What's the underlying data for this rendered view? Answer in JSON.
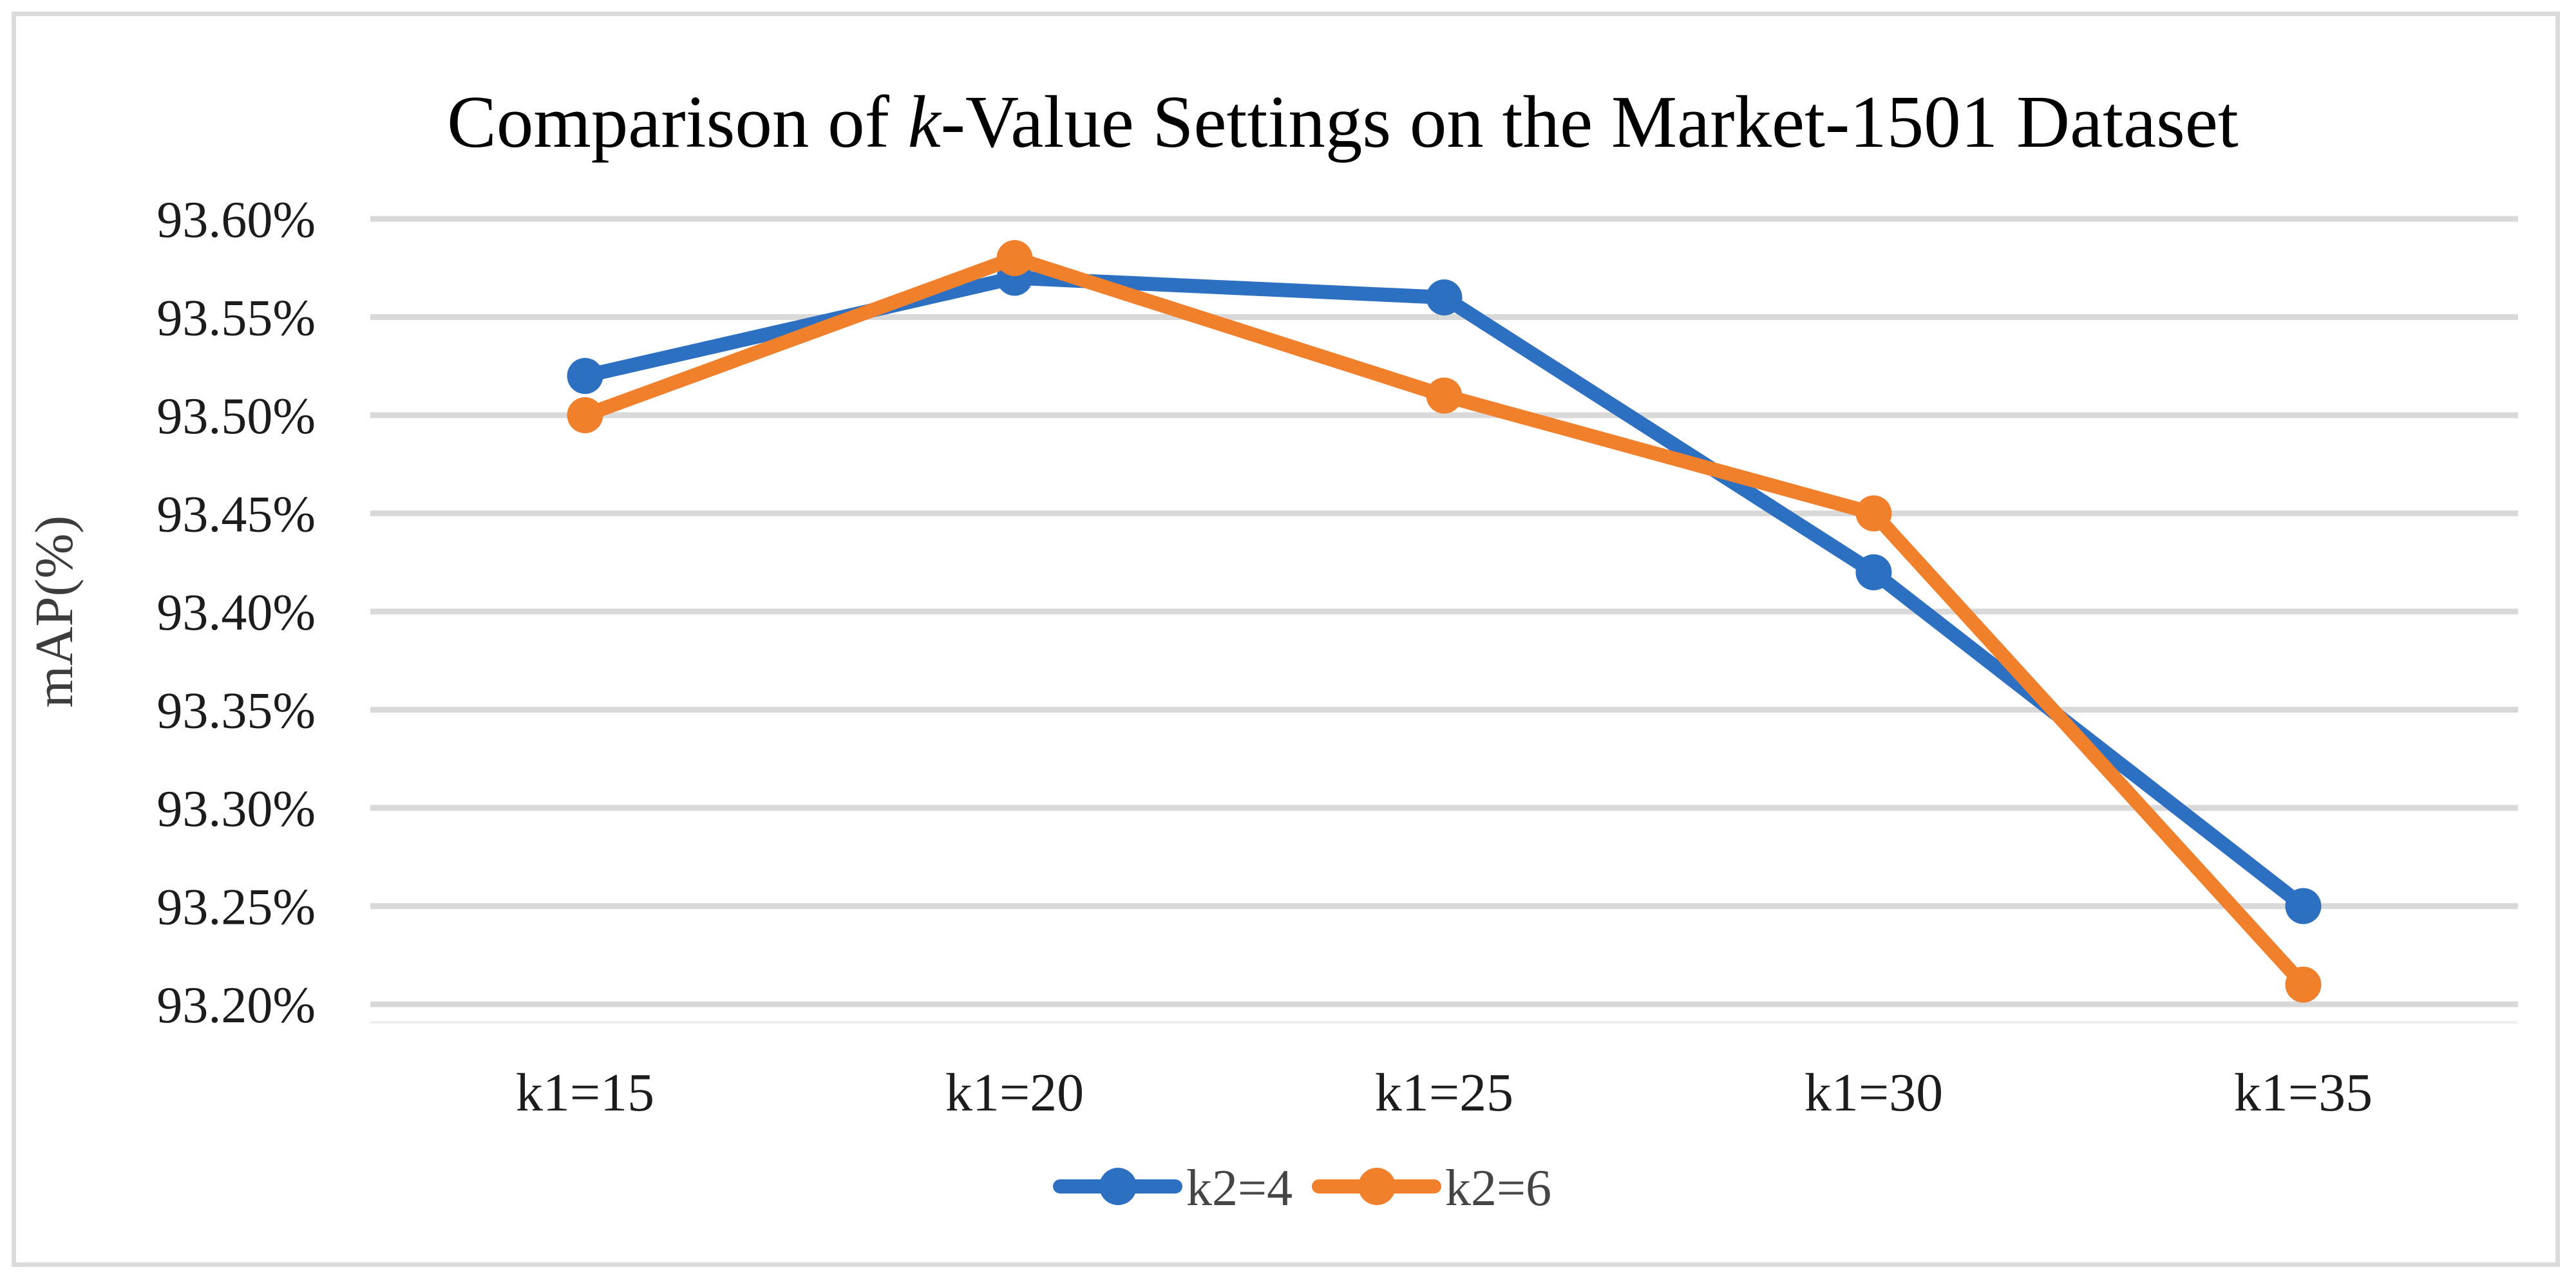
{
  "figure": {
    "title": {
      "prefix": "Comparison of ",
      "italic_var": "k",
      "suffix": "-Value Settings on the Market-1501 Dataset"
    },
    "y_axis_title": "mAP(%)"
  },
  "chart_data": {
    "type": "line",
    "title": "Comparison of k-Value Settings on the Market-1501 Dataset",
    "xlabel": "",
    "ylabel": "mAP(%)",
    "categories": [
      "k1=15",
      "k1=20",
      "k1=25",
      "k1=30",
      "k1=35"
    ],
    "series": [
      {
        "name": "k2=4",
        "color": "#2d70c2",
        "values": [
          93.52,
          93.57,
          93.56,
          93.42,
          93.25
        ]
      },
      {
        "name": "k2=6",
        "color": "#f0802b",
        "values": [
          93.5,
          93.58,
          93.51,
          93.45,
          93.21
        ]
      }
    ],
    "ylim": [
      93.2,
      93.6
    ],
    "ytick_step": 0.05,
    "y_tick_labels": [
      "93.60%",
      "93.55%",
      "93.50%",
      "93.45%",
      "93.40%",
      "93.35%",
      "93.30%",
      "93.25%",
      "93.20%"
    ],
    "grid": "horizontal",
    "gridline_color": "#d9d9d9",
    "axisline_color": "#efefef",
    "legend_position": "bottom",
    "marker": "circle"
  }
}
